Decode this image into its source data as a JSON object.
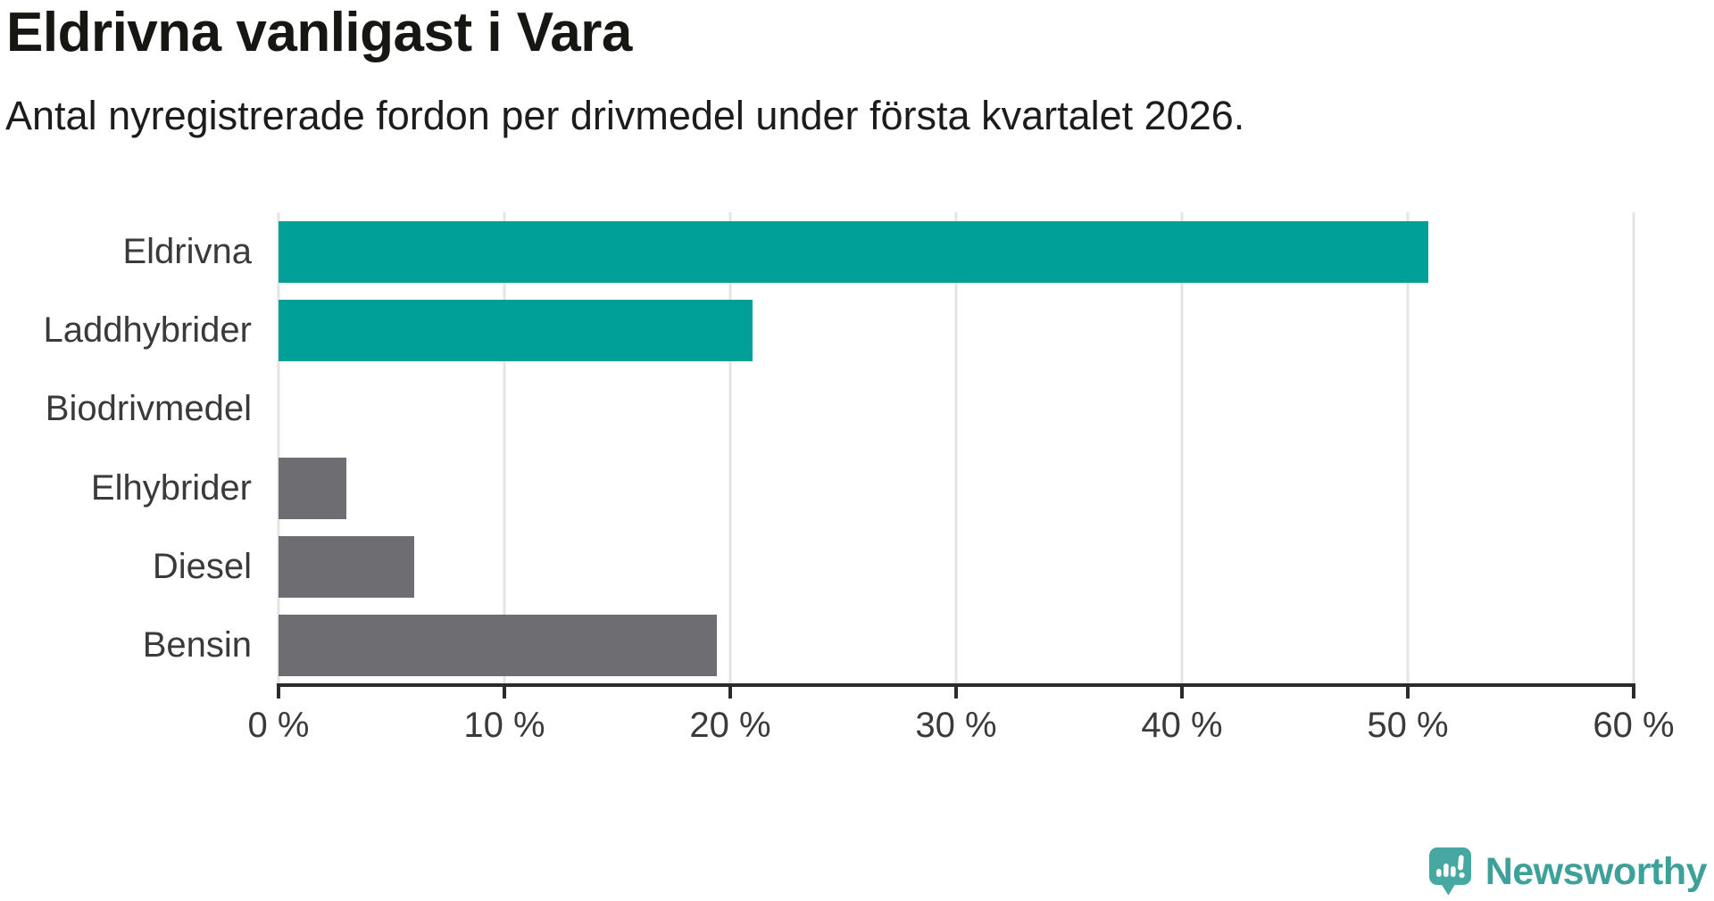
{
  "header": {
    "title": "Eldrivna vanligast i Vara",
    "subtitle": "Antal nyregistrerade fordon per drivmedel under första kvartalet 2026."
  },
  "chart_data": {
    "type": "bar",
    "orientation": "horizontal",
    "title": "Eldrivna vanligast i Vara",
    "subtitle": "Antal nyregistrerade fordon per drivmedel under första kvartalet 2026.",
    "categories": [
      "Eldrivna",
      "Laddhybrider",
      "Biodrivmedel",
      "Elhybrider",
      "Diesel",
      "Bensin"
    ],
    "values": [
      50.9,
      21.0,
      0,
      3.0,
      6.0,
      19.4
    ],
    "unit": "%",
    "xlim": [
      0,
      60
    ],
    "x_ticks": [
      "0 %",
      "10 %",
      "20 %",
      "30 %",
      "40 %",
      "50 %",
      "60 %"
    ],
    "grid": true,
    "legend": "none",
    "bar_colors": [
      "#00a099",
      "#00a099",
      "#6d6d72",
      "#6d6d72",
      "#6d6d72",
      "#6d6d72"
    ],
    "highlight_color": "#00a099",
    "default_color": "#6d6d72",
    "gridline_color": "#e4e4e4",
    "axis_color": "#2b2b2b",
    "label_color": "#3a3a3a"
  },
  "branding": {
    "logo_text": "Newsworthy",
    "logo_text_color": "#3da19a",
    "logo_icon_color": "#46a8a0",
    "logo_icon": "newsworthy-speech-bubble-bar-chart-icon"
  }
}
